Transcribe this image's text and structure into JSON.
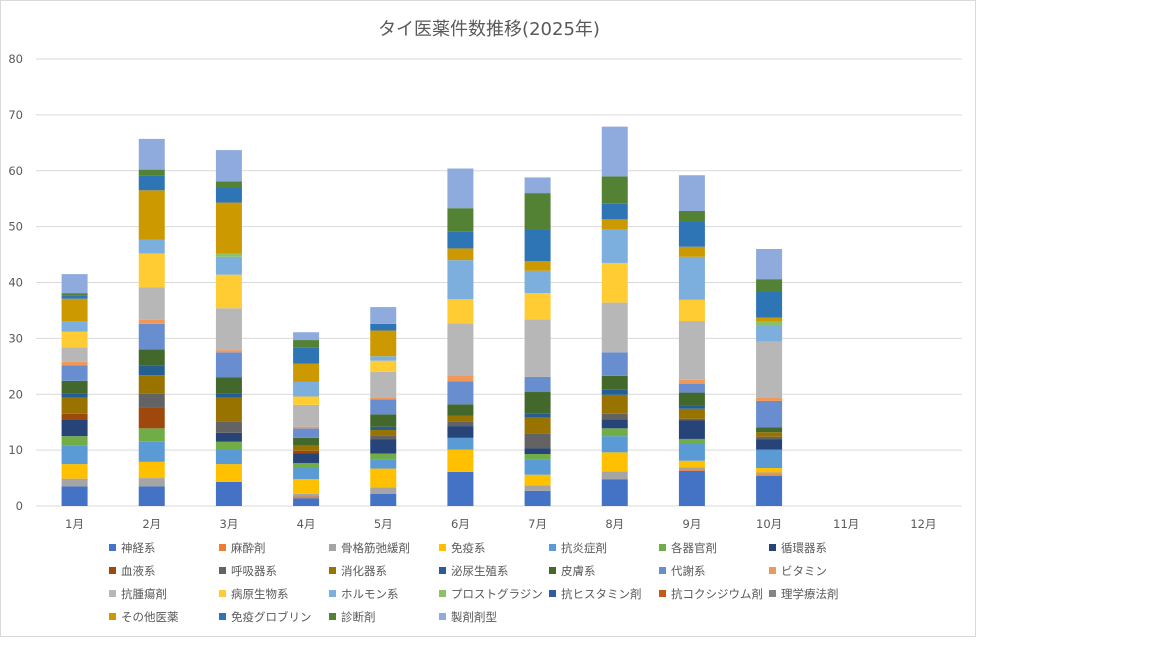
{
  "chart_data": {
    "type": "bar",
    "stacked": true,
    "title": "タイ医薬件数推移(2025年)",
    "xlabel": "",
    "ylabel": "",
    "ylim": [
      0,
      80
    ],
    "yticks": [
      "0",
      "10",
      "20",
      "30",
      "40",
      "50",
      "60",
      "70",
      "80"
    ],
    "grid": true,
    "legend_position": "bottom",
    "categories": [
      "1月",
      "2月",
      "3月",
      "4月",
      "5月",
      "6月",
      "7月",
      "8月",
      "9月",
      "10月",
      "11月",
      "12月"
    ],
    "series": [
      {
        "name": "神経系",
        "color": "#4472c4",
        "values": [
          3.5,
          3.5,
          4.3,
          1.4,
          2.2,
          6.1,
          2.7,
          4.8,
          6.3,
          5.4,
          0,
          0
        ]
      },
      {
        "name": "麻酔剤",
        "color": "#ed7d31",
        "values": [
          0,
          0,
          0,
          0.3,
          0,
          0,
          0,
          0,
          0.3,
          0.3,
          0,
          0
        ]
      },
      {
        "name": "骨格筋弛緩剤",
        "color": "#a5a5a5",
        "values": [
          1.4,
          1.5,
          0,
          0.5,
          1.1,
          0,
          1.0,
          1.4,
          0.3,
          0.3,
          0,
          0
        ]
      },
      {
        "name": "免疫系",
        "color": "#ffc000",
        "values": [
          2.6,
          2.9,
          3.2,
          2.6,
          3.4,
          4.0,
          1.9,
          3.4,
          1.2,
          0.8,
          0,
          0
        ]
      },
      {
        "name": "抗炎症剤",
        "color": "#5b9bd5",
        "values": [
          3.3,
          3.7,
          2.7,
          2.0,
          1.6,
          2.1,
          2.7,
          2.9,
          3.0,
          3.3,
          0,
          0
        ]
      },
      {
        "name": "各器官剤",
        "color": "#70ad47",
        "values": [
          1.7,
          2.3,
          1.3,
          0.9,
          1.1,
          0,
          1.0,
          1.4,
          0.9,
          0,
          0,
          0
        ]
      },
      {
        "name": "循環器系",
        "color": "#264478",
        "values": [
          3.0,
          0,
          1.6,
          1.7,
          2.5,
          2.1,
          1.0,
          1.6,
          3.3,
          1.8,
          0,
          0
        ]
      },
      {
        "name": "血液系",
        "color": "#9e480e",
        "values": [
          1.0,
          3.8,
          0,
          0.5,
          0,
          0,
          0,
          0,
          0,
          0,
          0,
          0
        ]
      },
      {
        "name": "呼吸器系",
        "color": "#636363",
        "values": [
          0,
          2.4,
          2.0,
          0,
          0.7,
          0.8,
          2.6,
          1.0,
          0.3,
          0.5,
          0,
          0
        ]
      },
      {
        "name": "消化器系",
        "color": "#997300",
        "values": [
          0,
          0,
          0,
          0,
          0,
          0,
          0,
          0,
          0,
          0,
          0,
          0
        ]
      },
      {
        "name": "泌尿生殖系",
        "color": "#255e91",
        "values": [
          0,
          0,
          0,
          0,
          0,
          0,
          0,
          0,
          0,
          0,
          0,
          0
        ]
      },
      {
        "name": "皮膚系",
        "color": "#43682b",
        "values": [
          0,
          0,
          0,
          0,
          0,
          0,
          0,
          0,
          0,
          0,
          0,
          0
        ]
      },
      {
        "name": "代謝系",
        "color": "#698ed0",
        "values": [
          0,
          0,
          0,
          0,
          0,
          0,
          0,
          0,
          0,
          0,
          0,
          0
        ]
      },
      {
        "name": "ビタミン",
        "color": "#f1975a",
        "values": [
          0,
          0,
          0,
          0,
          0,
          0,
          0,
          0,
          0,
          0,
          0,
          0
        ]
      },
      {
        "name": "抗腫瘍剤",
        "color": "#b7b7b7",
        "values": [
          0,
          0,
          0,
          0,
          0,
          0,
          0,
          0,
          0,
          0,
          0,
          0
        ]
      },
      {
        "name": "病原生物系",
        "color": "#ffcd33",
        "values": [
          0,
          0,
          0,
          0,
          0,
          0,
          0,
          0,
          0,
          0,
          0,
          0
        ]
      },
      {
        "name": "ホルモン系",
        "color": "#7cafdd",
        "values": [
          0,
          0,
          0,
          0,
          0,
          0,
          0,
          0,
          0,
          0,
          0,
          0
        ]
      },
      {
        "name": "プロストグラジン",
        "color": "#8cc168",
        "values": [
          0,
          0,
          0,
          0,
          0,
          0,
          0,
          0,
          0,
          0,
          0,
          0
        ]
      },
      {
        "name": "抗ヒスタミン剤",
        "color": "#335aa1",
        "values": [
          0,
          0,
          0,
          0,
          0,
          0,
          0,
          0,
          0,
          0,
          0,
          0
        ]
      },
      {
        "name": "抗コクシジウム剤",
        "color": "#c65911",
        "values": [
          0,
          0,
          0,
          0,
          0,
          0,
          0,
          0,
          0,
          0,
          0,
          0
        ]
      },
      {
        "name": "理学療法剤",
        "color": "#848484",
        "values": [
          0,
          0,
          0,
          0,
          0,
          0,
          0,
          0,
          0,
          0,
          0,
          0
        ]
      },
      {
        "name": "その他医薬",
        "color": "#cc9a00",
        "values": [
          0,
          0,
          0,
          0,
          0,
          0,
          0,
          0,
          0,
          0,
          0,
          0
        ]
      },
      {
        "name": "免疫グロブリン",
        "color": "#2e75b6",
        "values": [
          0,
          0,
          0,
          0,
          0,
          0,
          0,
          0,
          0,
          0,
          0,
          0
        ]
      },
      {
        "name": "診断剤",
        "color": "#548235",
        "values": [
          0,
          0,
          0,
          0,
          0,
          0,
          0,
          0,
          0,
          0,
          0,
          0
        ]
      },
      {
        "name": "製剤剤型",
        "color": "#8faadc",
        "values": [
          0,
          0,
          0,
          0,
          0,
          0,
          0,
          0,
          0,
          0,
          0,
          0
        ]
      }
    ]
  }
}
